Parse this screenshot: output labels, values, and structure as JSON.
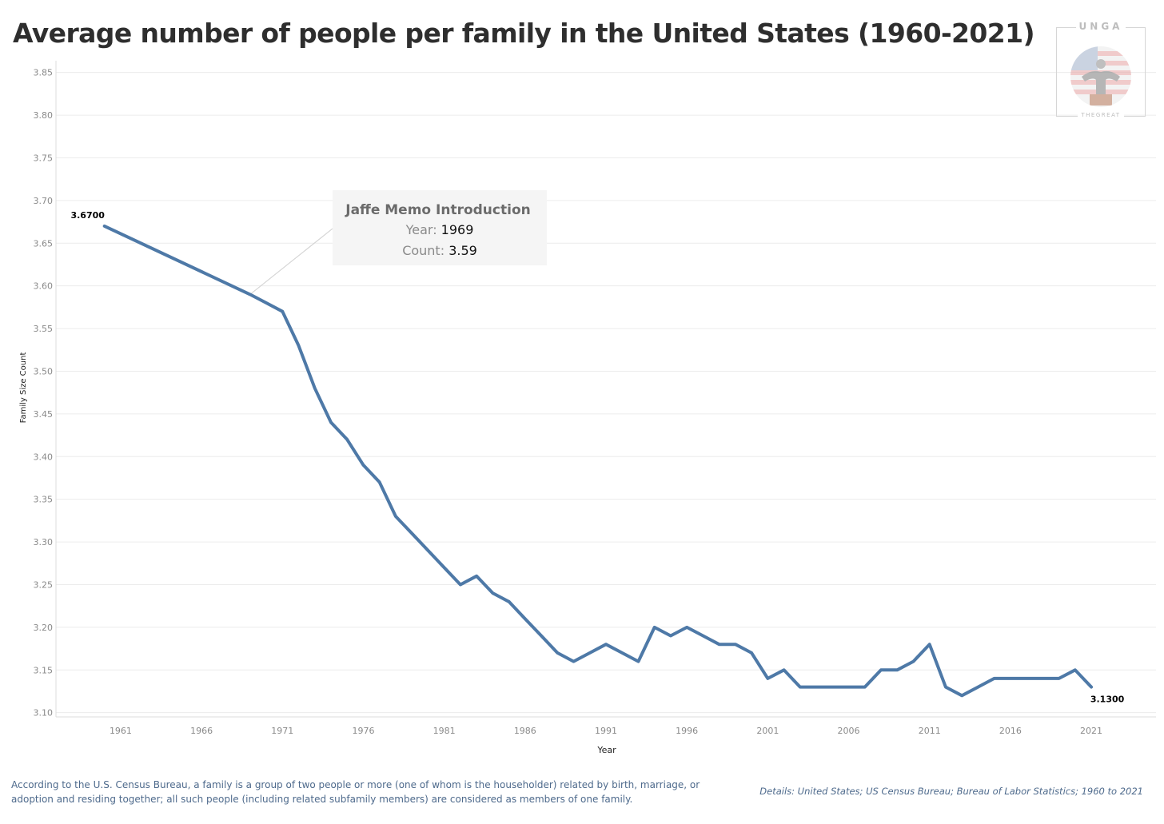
{
  "title": "Average number of people per family in the United States (1960-2021)",
  "chart_data": {
    "type": "line",
    "title": "Average number of people per family in the United States (1960-2021)",
    "xlabel": "Year",
    "ylabel": "Family Size Count",
    "xlim": [
      1957,
      2025
    ],
    "ylim": [
      3.095,
      3.86
    ],
    "y_ticks": [
      "3.10",
      "3.15",
      "3.20",
      "3.25",
      "3.30",
      "3.35",
      "3.40",
      "3.45",
      "3.50",
      "3.55",
      "3.60",
      "3.65",
      "3.70",
      "3.75",
      "3.80",
      "3.85"
    ],
    "x_ticks": [
      "1961",
      "1966",
      "1971",
      "1976",
      "1981",
      "1986",
      "1991",
      "1996",
      "2001",
      "2006",
      "2011",
      "2016",
      "2021"
    ],
    "series": [
      {
        "name": "Family Size Count",
        "color": "#4e79a7",
        "x": [
          1960,
          1969,
          1970,
          1971,
          1972,
          1973,
          1974,
          1975,
          1976,
          1977,
          1978,
          1979,
          1980,
          1981,
          1982,
          1983,
          1984,
          1985,
          1986,
          1987,
          1988,
          1989,
          1990,
          1991,
          1992,
          1993,
          1994,
          1995,
          1996,
          1997,
          1998,
          1999,
          2000,
          2001,
          2002,
          2003,
          2004,
          2005,
          2006,
          2007,
          2008,
          2009,
          2010,
          2011,
          2012,
          2013,
          2014,
          2015,
          2016,
          2017,
          2018,
          2019,
          2020,
          2021
        ],
        "values": [
          3.67,
          3.59,
          3.58,
          3.57,
          3.53,
          3.48,
          3.44,
          3.42,
          3.39,
          3.37,
          3.33,
          3.31,
          3.29,
          3.27,
          3.25,
          3.26,
          3.24,
          3.23,
          3.21,
          3.19,
          3.17,
          3.16,
          3.17,
          3.18,
          3.17,
          3.16,
          3.2,
          3.19,
          3.2,
          3.19,
          3.18,
          3.18,
          3.17,
          3.14,
          3.15,
          3.13,
          3.13,
          3.13,
          3.13,
          3.13,
          3.15,
          3.15,
          3.16,
          3.18,
          3.13,
          3.12,
          3.13,
          3.14,
          3.14,
          3.14,
          3.14,
          3.14,
          3.15,
          3.13
        ]
      }
    ],
    "point_labels": [
      {
        "x": 1960,
        "y": 3.67,
        "text": "3.6700"
      },
      {
        "x": 2021,
        "y": 3.13,
        "text": "3.1300"
      }
    ],
    "annotation": {
      "x": 1969,
      "y": 3.59,
      "title": "Jaffe Memo Introduction",
      "year_label": "Year:",
      "year_value": "1969",
      "count_label": "Count:",
      "count_value": "3.59"
    },
    "grid": true,
    "legend": "none"
  },
  "footnote": "According to the U.S. Census Bureau, a family is a group of two people or more (one of whom is the householder) related by birth, marriage, or adoption and residing together; all such people (including related subfamily members) are considered as members of one family.",
  "details": "Details: United States; US Census Bureau; Bureau of Labor Statistics; 1960 to 2021",
  "logo": {
    "top_text": "UNGA",
    "bottom_text": "THEGREAT"
  },
  "colors": {
    "line": "#4e79a7",
    "text": "#2e2e2e",
    "note": "#4e6a8c",
    "grid": "#ececec"
  }
}
